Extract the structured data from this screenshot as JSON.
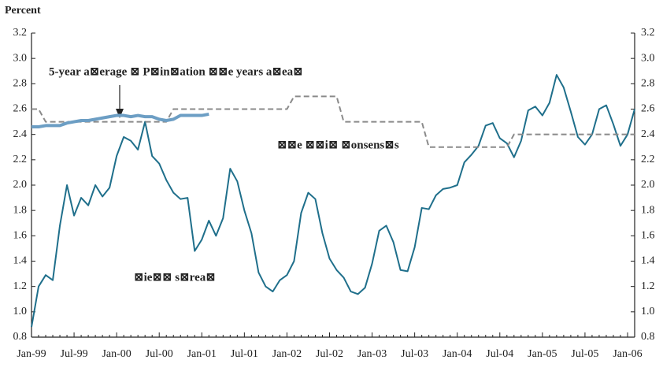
{
  "chart_data": {
    "type": "line",
    "y_label": "Percent",
    "categories": [
      "Jan-99",
      null,
      null,
      null,
      null,
      null,
      "Jul-99",
      null,
      null,
      null,
      null,
      null,
      "Jan-00",
      null,
      null,
      null,
      null,
      null,
      "Jul-00",
      null,
      null,
      null,
      null,
      null,
      "Jan-01",
      null,
      null,
      null,
      null,
      null,
      "Jul-01",
      null,
      null,
      null,
      null,
      null,
      "Jan-02",
      null,
      null,
      null,
      null,
      null,
      "Jul-02",
      null,
      null,
      null,
      null,
      null,
      "Jan-03",
      null,
      null,
      null,
      null,
      null,
      "Jul-03",
      null,
      null,
      null,
      null,
      null,
      "Jan-04",
      null,
      null,
      null,
      null,
      null,
      "Jul-04",
      null,
      null,
      null,
      null,
      null,
      "Jan-05",
      null,
      null,
      null,
      null,
      null,
      "Jul-05",
      null,
      null,
      null,
      null,
      null,
      "Jan-06",
      null
    ],
    "series": [
      {
        "name": "⊠ie⊠⊠ s⊠rea⊠",
        "color": "#1f6f8b",
        "dashed": false,
        "width": 2,
        "values": [
          0.88,
          1.2,
          1.29,
          1.25,
          1.68,
          2.0,
          1.76,
          1.9,
          1.84,
          2.0,
          1.91,
          1.98,
          2.23,
          2.38,
          2.35,
          2.28,
          2.5,
          2.23,
          2.17,
          2.04,
          1.94,
          1.89,
          1.9,
          1.48,
          1.57,
          1.72,
          1.6,
          1.74,
          2.13,
          2.03,
          1.8,
          1.62,
          1.31,
          1.2,
          1.16,
          1.25,
          1.29,
          1.4,
          1.78,
          1.94,
          1.89,
          1.62,
          1.42,
          1.33,
          1.27,
          1.16,
          1.14,
          1.19,
          1.38,
          1.64,
          1.68,
          1.55,
          1.33,
          1.32,
          1.51,
          1.82,
          1.81,
          1.92,
          1.97,
          1.98,
          2.0,
          2.18,
          2.24,
          2.31,
          2.47,
          2.49,
          2.37,
          2.33,
          2.22,
          2.35,
          2.59,
          2.62,
          2.55,
          2.65,
          2.87,
          2.77,
          2.58,
          2.38,
          2.32,
          2.4,
          2.6,
          2.63,
          2.48,
          2.31,
          2.4,
          2.6
        ]
      },
      {
        "name": "⊠⊠e ⊠⊠i⊠ ⊠onsens⊠s",
        "color": "#8a8a8a",
        "dashed": true,
        "width": 2,
        "values": [
          2.6,
          2.6,
          2.5,
          2.5,
          2.5,
          2.5,
          2.5,
          2.5,
          2.5,
          2.5,
          2.5,
          2.5,
          2.5,
          2.5,
          2.5,
          2.5,
          2.5,
          2.5,
          2.5,
          2.5,
          2.6,
          2.6,
          2.6,
          2.6,
          2.6,
          2.6,
          2.6,
          2.6,
          2.6,
          2.6,
          2.6,
          2.6,
          2.6,
          2.6,
          2.6,
          2.6,
          2.6,
          2.7,
          2.7,
          2.7,
          2.7,
          2.7,
          2.7,
          2.7,
          2.5,
          2.5,
          2.5,
          2.5,
          2.5,
          2.5,
          2.5,
          2.5,
          2.5,
          2.5,
          2.5,
          2.5,
          2.3,
          2.3,
          2.3,
          2.3,
          2.3,
          2.3,
          2.3,
          2.3,
          2.3,
          2.3,
          2.3,
          2.3,
          2.4,
          2.4,
          2.4,
          2.4,
          2.4,
          2.4,
          2.4,
          2.4,
          2.4,
          2.4,
          2.4,
          2.4,
          2.4,
          2.4,
          2.4,
          2.4,
          2.4,
          2.4
        ]
      },
      {
        "name": "5-year a⊠erage ⊠ P⊠in⊠ation ⊠⊠e years a⊠ea⊠",
        "color": "#6c9ec4",
        "dashed": false,
        "width": 4,
        "values": [
          2.46,
          2.46,
          2.47,
          2.47,
          2.47,
          2.49,
          2.5,
          2.51,
          2.51,
          2.52,
          2.53,
          2.54,
          2.55,
          2.55,
          2.54,
          2.55,
          2.54,
          2.54,
          2.52,
          2.51,
          2.52,
          2.55,
          2.55,
          2.55,
          2.55,
          2.56,
          null,
          null,
          null,
          null,
          null,
          null,
          null,
          null,
          null,
          null,
          null,
          null,
          null,
          null,
          null,
          null,
          null,
          null,
          null,
          null,
          null,
          null,
          null,
          null,
          null,
          null,
          null,
          null,
          null,
          null,
          null,
          null,
          null,
          null,
          null,
          null,
          null,
          null,
          null,
          null,
          null,
          null,
          null,
          null,
          null,
          null,
          null,
          null,
          null,
          null,
          null,
          null,
          null,
          null,
          null,
          null,
          null,
          null,
          null,
          null
        ]
      }
    ],
    "ylim": [
      0.8,
      3.2
    ],
    "yticks": [
      0.8,
      {
        "value": 1,
        "label": "1.0"
      },
      1.2,
      1.4,
      1.6,
      1.8,
      {
        "value": 2,
        "label": "2.0"
      },
      2.2,
      2.4,
      2.6,
      2.8,
      {
        "value": 3,
        "label": "3.0"
      },
      3.2
    ],
    "y2lim": [
      0.8,
      3.2
    ],
    "y2ticks": [
      0.8,
      {
        "value": 1,
        "label": "1.0"
      },
      1.2,
      1.4,
      1.6,
      1.8,
      {
        "value": 2,
        "label": "2.0"
      },
      2.2,
      2.4,
      2.6,
      2.8,
      {
        "value": 3,
        "label": "3.0"
      },
      3.2
    ]
  }
}
